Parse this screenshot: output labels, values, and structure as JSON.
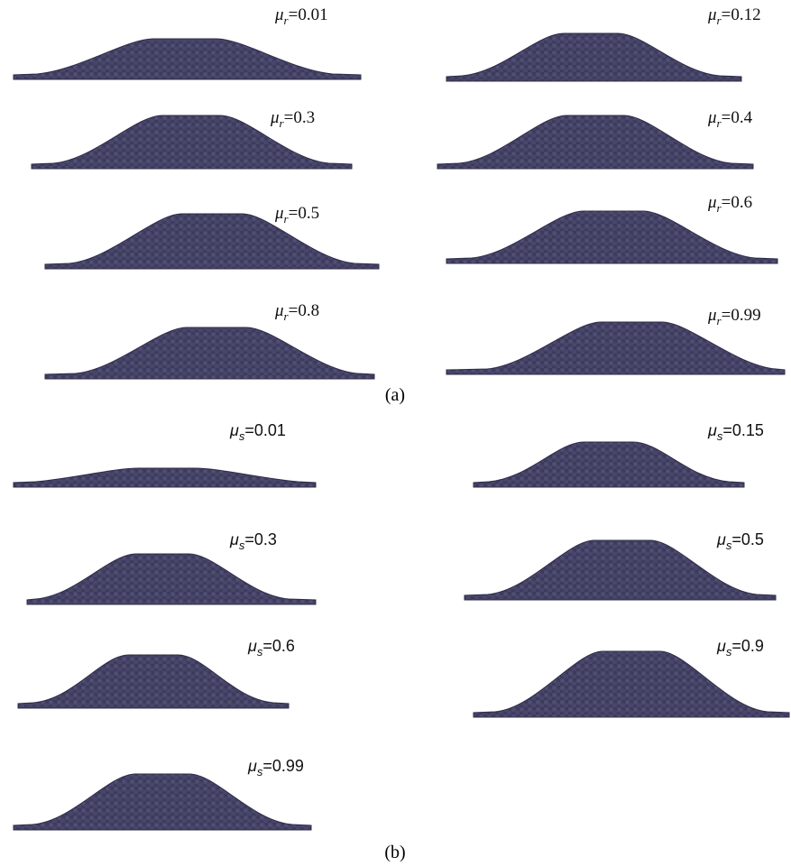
{
  "panel_a": {
    "label": "(a)",
    "items": [
      {
        "symbol": "μ",
        "subscript": "r",
        "value": "=0.01"
      },
      {
        "symbol": "μ",
        "subscript": "r",
        "value": "=0.12"
      },
      {
        "symbol": "μ",
        "subscript": "r",
        "value": "=0.3"
      },
      {
        "symbol": "μ",
        "subscript": "r",
        "value": "=0.4"
      },
      {
        "symbol": "μ",
        "subscript": "r",
        "value": "=0.5"
      },
      {
        "symbol": "μ",
        "subscript": "r",
        "value": "=0.6"
      },
      {
        "symbol": "μ",
        "subscript": "r",
        "value": "=0.8"
      },
      {
        "symbol": "μ",
        "subscript": "r",
        "value": "=0.99"
      }
    ]
  },
  "panel_b": {
    "label": "(b)",
    "items": [
      {
        "symbol": "μ",
        "subscript": "s",
        "value": "=0.01"
      },
      {
        "symbol": "μ",
        "subscript": "s",
        "value": "=0.15"
      },
      {
        "symbol": "μ",
        "subscript": "s",
        "value": "=0.3"
      },
      {
        "symbol": "μ",
        "subscript": "s",
        "value": "=0.5"
      },
      {
        "symbol": "μ",
        "subscript": "s",
        "value": "=0.6"
      },
      {
        "symbol": "μ",
        "subscript": "s",
        "value": "=0.9"
      },
      {
        "symbol": "μ",
        "subscript": "s",
        "value": "=0.99"
      }
    ]
  }
}
